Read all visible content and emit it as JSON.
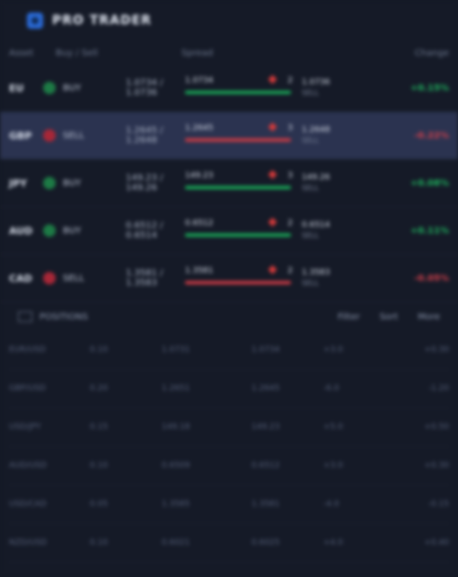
{
  "brand": {
    "title": "PRO TRADER"
  },
  "columns": [
    "Asset",
    "Buy / Sell",
    "Spread",
    "Change"
  ],
  "rows": [
    {
      "tag": "EU",
      "dir": "up",
      "mid": "BUY",
      "price": "1.0734 / 1.0736",
      "lo": "1.0734",
      "hi": "2",
      "num": "1.0736",
      "sub": "SELL",
      "pct": "+0.15%",
      "active": false
    },
    {
      "tag": "GBP",
      "dir": "down",
      "mid": "SELL",
      "price": "1.2645 / 1.2648",
      "lo": "1.2645",
      "hi": "3",
      "num": "1.2648",
      "sub": "SELL",
      "pct": "-0.22%",
      "active": true
    },
    {
      "tag": "JPY",
      "dir": "up",
      "mid": "BUY",
      "price": "149.23 / 149.26",
      "lo": "149.23",
      "hi": "3",
      "num": "149.26",
      "sub": "SELL",
      "pct": "+0.08%",
      "active": false
    },
    {
      "tag": "AUD",
      "dir": "up",
      "mid": "BUY",
      "price": "0.6512 / 0.6514",
      "lo": "0.6512",
      "hi": "2",
      "num": "0.6514",
      "sub": "SELL",
      "pct": "+0.11%",
      "active": false
    },
    {
      "tag": "CAD",
      "dir": "down",
      "mid": "SELL",
      "price": "1.3581 / 1.3583",
      "lo": "1.3581",
      "hi": "2",
      "num": "1.3583",
      "sub": "SELL",
      "pct": "-0.05%",
      "active": false
    }
  ],
  "positions": {
    "title": "POSITIONS",
    "right": [
      "Filter",
      "Sort",
      "More"
    ]
  },
  "grid": [
    [
      "EUR/USD",
      "0.10",
      "1.0731",
      "1.0734",
      "+3.0",
      "+0.30"
    ],
    [
      "GBP/USD",
      "0.20",
      "1.2651",
      "1.2645",
      "-6.0",
      "-1.20"
    ],
    [
      "USD/JPY",
      "0.15",
      "149.18",
      "149.23",
      "+5.0",
      "+0.50"
    ],
    [
      "AUD/USD",
      "0.10",
      "0.6509",
      "0.6512",
      "+3.0",
      "+0.30"
    ],
    [
      "USD/CAD",
      "0.05",
      "1.3585",
      "1.3581",
      "-4.0",
      "-0.15"
    ],
    [
      "NZD/USD",
      "0.10",
      "0.6021",
      "0.6025",
      "+4.0",
      "+0.40"
    ]
  ]
}
